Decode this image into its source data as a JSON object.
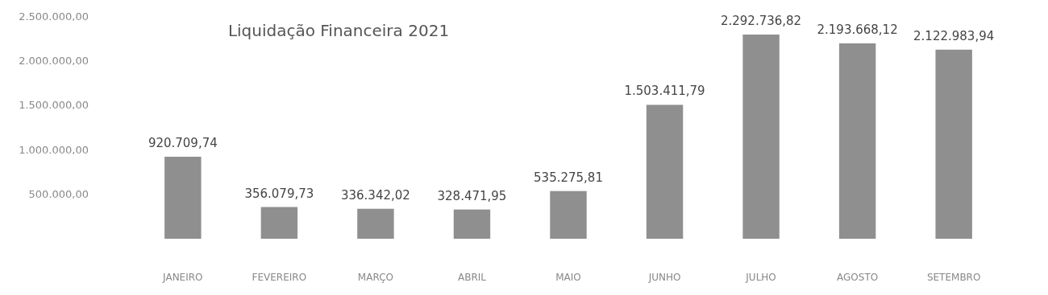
{
  "chart_data": {
    "type": "bar",
    "title": "Liquidação Financeira 2021",
    "categories": [
      "JANEIRO",
      "FEVEREIRO",
      "MARÇO",
      "ABRIL",
      "MAIO",
      "JUNHO",
      "JULHO",
      "AGOSTO",
      "SETEMBRO"
    ],
    "values": [
      920709.74,
      356079.73,
      336342.02,
      328471.95,
      535275.81,
      1503411.79,
      2292736.82,
      2193668.12,
      2122983.94
    ],
    "value_labels": [
      "920.709,74",
      "356.079,73",
      "336.342,02",
      "328.471,95",
      "535.275,81",
      "1.503.411,79",
      "2.292.736,82",
      "2.193.668,12",
      "2.122.983,94"
    ],
    "color": "#8f8f8f",
    "ylim": [
      0,
      2500000
    ],
    "yticks": [
      {
        "value": 500000,
        "label": "500.000,00"
      },
      {
        "value": 1000000,
        "label": "1.000.000,00"
      },
      {
        "value": 1500000,
        "label": "1.500.000,00"
      },
      {
        "value": 2000000,
        "label": "2.000.000,00"
      },
      {
        "value": 2500000,
        "label": "2.500.000,00"
      }
    ]
  }
}
